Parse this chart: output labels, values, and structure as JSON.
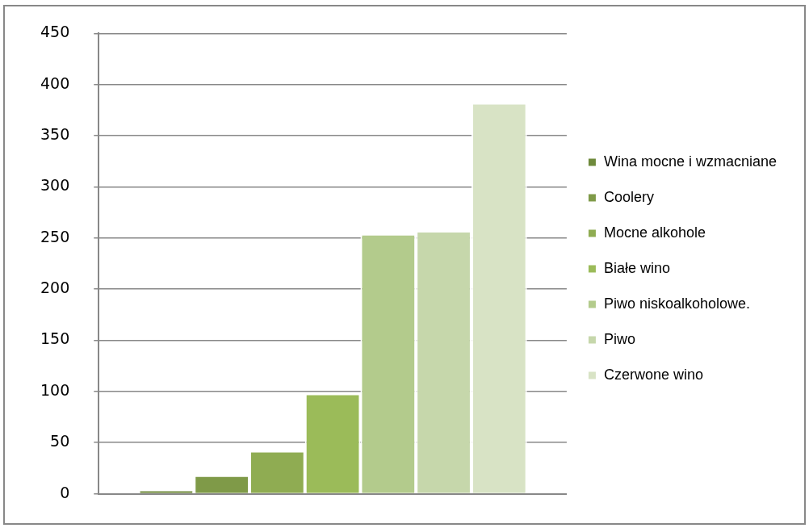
{
  "chart_data": {
    "type": "bar",
    "categories": [
      null
    ],
    "series": [
      {
        "name": "Wina mocne i wzmacniane",
        "color": "#6f8a3c",
        "values": [
          4
        ]
      },
      {
        "name": "Coolery",
        "color": "#7f9a48",
        "values": [
          18
        ]
      },
      {
        "name": "Mocne alkohole",
        "color": "#8fac52",
        "values": [
          42
        ]
      },
      {
        "name": "Białe wino",
        "color": "#9bbb59",
        "values": [
          98
        ]
      },
      {
        "name": "Piwo niskoalkoholowe.",
        "color": "#b3cb8c",
        "values": [
          254
        ]
      },
      {
        "name": "Piwo",
        "color": "#c6d7ab",
        "values": [
          257
        ]
      },
      {
        "name": "Czerwone wino",
        "color": "#d8e3c5",
        "values": [
          382
        ]
      }
    ],
    "ylim": [
      0,
      450
    ],
    "yticks": [
      0,
      50,
      100,
      150,
      200,
      250,
      300,
      350,
      400,
      450
    ],
    "grid": "y",
    "legend": "right"
  }
}
